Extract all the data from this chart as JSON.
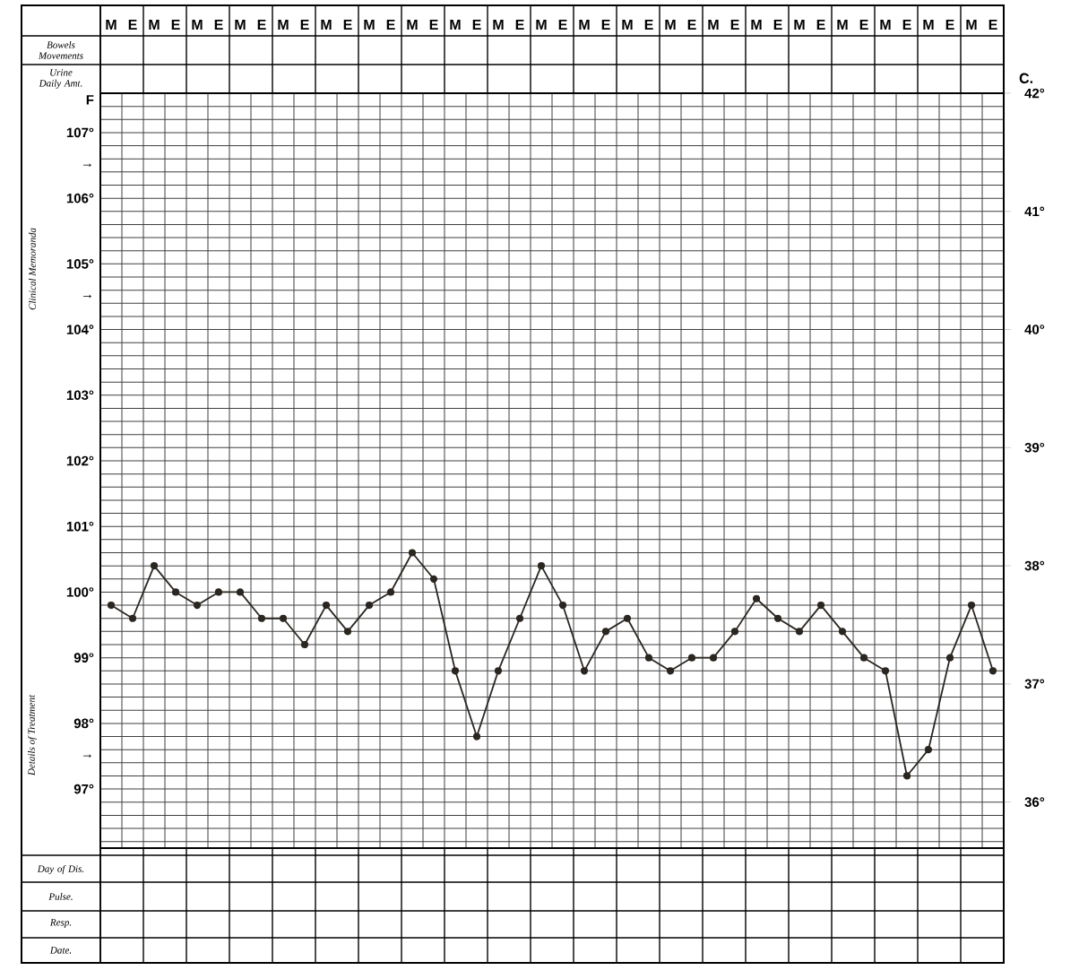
{
  "chart_data": {
    "type": "line",
    "categories": [
      "M",
      "E",
      "M",
      "E",
      "M",
      "E",
      "M",
      "E",
      "M",
      "E",
      "M",
      "E",
      "M",
      "E",
      "M",
      "E",
      "M",
      "E",
      "M",
      "E",
      "M",
      "E",
      "M",
      "E",
      "M",
      "E",
      "M",
      "E",
      "M",
      "E",
      "M",
      "E",
      "M",
      "E",
      "M",
      "E",
      "M",
      "E",
      "M",
      "E",
      "M",
      "E"
    ],
    "series": [
      {
        "color": "#2b2620",
        "values": [
          99.8,
          99.6,
          100.4,
          100.0,
          99.8,
          100.0,
          100.0,
          99.6,
          99.6,
          99.2,
          99.8,
          99.4,
          99.8,
          100.0,
          100.6,
          100.2,
          98.8,
          97.8,
          98.8,
          99.6,
          100.4,
          99.8,
          98.8,
          99.4,
          99.6,
          99.0,
          98.8,
          99.0,
          99.0,
          99.4,
          99.9,
          99.6,
          99.4,
          99.8,
          99.4,
          99.0,
          98.8,
          97.2,
          97.6,
          99.0,
          99.8,
          98.8
        ]
      }
    ],
    "ylim": [
      96.1,
      107.6
    ],
    "yticks": [
      {
        "value": 97,
        "label": "97°"
      },
      {
        "value": 97.5,
        "label": "→"
      },
      {
        "value": 98,
        "label": "98°"
      },
      {
        "value": 99,
        "label": "99°"
      },
      {
        "value": 100,
        "label": "100°"
      },
      {
        "value": 101,
        "label": "101°"
      },
      {
        "value": 102,
        "label": "102°"
      },
      {
        "value": 103,
        "label": "103°"
      },
      {
        "value": 104,
        "label": "104°"
      },
      {
        "value": 104.5,
        "label": "→"
      },
      {
        "value": 105,
        "label": "105°"
      },
      {
        "value": 106,
        "label": "106°"
      },
      {
        "value": 106.5,
        "label": "→"
      },
      {
        "value": 107,
        "label": "107°"
      },
      {
        "value": 107.5,
        "label": "F"
      }
    ],
    "y2label": "C.",
    "y2lim": [
      35.61,
      42
    ],
    "y2ticks": [
      {
        "value": 36,
        "label": "36°"
      },
      {
        "value": 37,
        "label": "37°"
      },
      {
        "value": 38,
        "label": "38°"
      },
      {
        "value": 39,
        "label": "39°"
      },
      {
        "value": 40,
        "label": "40°"
      },
      {
        "value": 41,
        "label": "41°"
      },
      {
        "value": 42,
        "label": "42°"
      }
    ],
    "grid": true,
    "marker": "circle",
    "line_style": "solid",
    "annotations": [
      "Bowels Movements",
      "Urine Daily Amt.",
      "Clinical Memoranda",
      "Details of Treatment",
      "Day of Dis.",
      "Pulse.",
      "Resp.",
      "Date."
    ]
  }
}
